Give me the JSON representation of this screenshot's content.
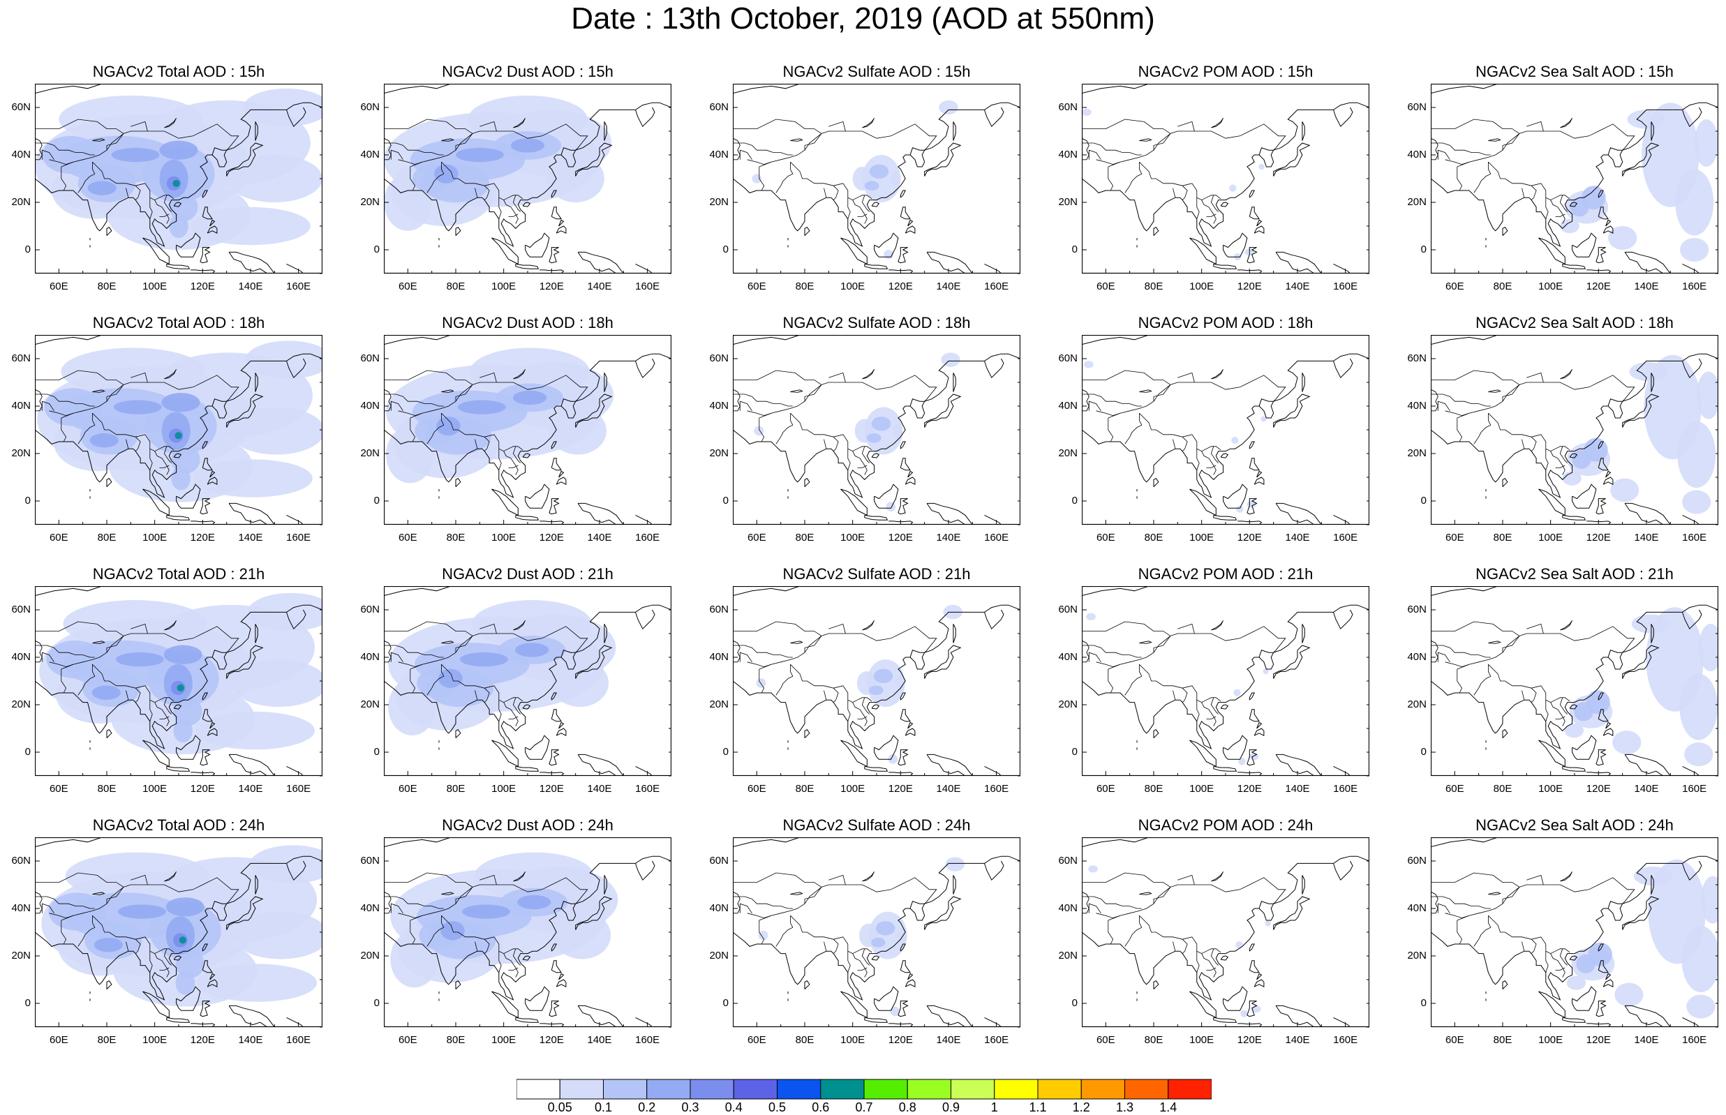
{
  "title": "Date : 13th October, 2019 (AOD at 550nm)",
  "panels": [
    [
      "NGACv2 Total AOD : 15h",
      "NGACv2 Dust AOD : 15h",
      "NGACv2 Sulfate AOD : 15h",
      "NGACv2 POM AOD : 15h",
      "NGACv2 Sea Salt AOD : 15h"
    ],
    [
      "NGACv2 Total AOD : 18h",
      "NGACv2 Dust AOD : 18h",
      "NGACv2 Sulfate AOD : 18h",
      "NGACv2 POM AOD : 18h",
      "NGACv2 Sea Salt AOD : 18h"
    ],
    [
      "NGACv2 Total AOD : 21h",
      "NGACv2 Dust AOD : 21h",
      "NGACv2 Sulfate AOD : 21h",
      "NGACv2 POM AOD : 21h",
      "NGACv2 Sea Salt AOD : 21h"
    ],
    [
      "NGACv2 Total AOD : 24h",
      "NGACv2 Dust AOD : 24h",
      "NGACv2 Sulfate AOD : 24h",
      "NGACv2 POM AOD : 24h",
      "NGACv2 Sea Salt  AOD : 24h"
    ]
  ],
  "map": {
    "lat_ticks": [
      "60N",
      "40N",
      "20N",
      "0"
    ],
    "lat_values": [
      60,
      40,
      20,
      0
    ],
    "lon_ticks": [
      "60E",
      "80E",
      "100E",
      "120E",
      "140E",
      "160E"
    ],
    "lon_values": [
      60,
      80,
      100,
      120,
      140,
      160
    ],
    "lon_range": [
      50,
      170
    ],
    "lat_range": [
      -10,
      70
    ]
  },
  "colorbar": {
    "labels": [
      "0.05",
      "0.1",
      "0.2",
      "0.3",
      "0.4",
      "0.5",
      "0.6",
      "0.7",
      "0.8",
      "0.9",
      "1",
      "1.1",
      "1.2",
      "1.3",
      "1.4"
    ],
    "colors": [
      "#ffffff",
      "#d4dcfa",
      "#b4c4f7",
      "#94aaf2",
      "#7b8eee",
      "#5c63e6",
      "#0a55f0",
      "#009090",
      "#55ee00",
      "#99ff22",
      "#ccff55",
      "#ffff00",
      "#ffcc00",
      "#ff9900",
      "#ff6600",
      "#ff2200"
    ]
  }
}
